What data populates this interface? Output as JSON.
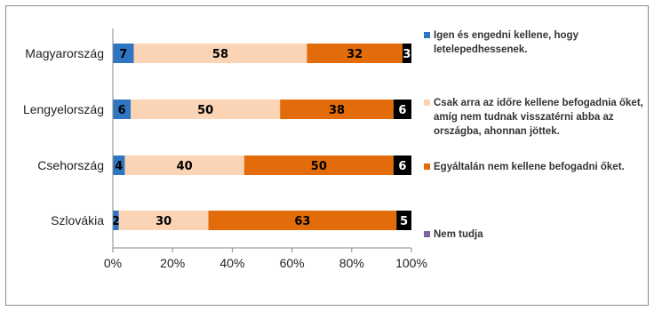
{
  "chart_data": {
    "type": "bar",
    "orientation": "horizontal",
    "stacked": true,
    "percent": true,
    "categories": [
      "Magyarország",
      "Lengyelország",
      "Csehország",
      "Szlovákia"
    ],
    "series": [
      {
        "name": "Igen és engedni kellene, hogy letelepedhessenek.",
        "color": "#2e75c2",
        "values": [
          7,
          6,
          4,
          2
        ]
      },
      {
        "name": "Csak arra az időre kellene befogadnia őket, amíg nem tudnak visszatérni abba az országba, ahonnan jöttek.",
        "color": "#fbd3b5",
        "values": [
          58,
          50,
          40,
          30
        ]
      },
      {
        "name": "Egyáltalán nem kellene befogadni őket.",
        "color": "#e36c0a",
        "values": [
          32,
          38,
          50,
          63
        ]
      },
      {
        "name": "Nem tudja",
        "color": "#000000",
        "values": [
          3,
          6,
          6,
          5
        ]
      }
    ],
    "legend_swatches": [
      "#2e75c2",
      "#fbd3b5",
      "#e36c0a",
      "#8064a2"
    ],
    "xlim": [
      0,
      100
    ],
    "x_ticks": [
      "0%",
      "20%",
      "40%",
      "60%",
      "80%",
      "100%"
    ],
    "label_colors": [
      "#000000",
      "#000000",
      "#000000",
      "#ffffff"
    ],
    "legend_position": "right",
    "grid": false
  },
  "legend": {
    "items": [
      {
        "lines": [
          "Igen és engedni kellene, hogy",
          "letelepedhessenek."
        ]
      },
      {
        "lines": [
          "Csak arra az időre kellene befogadnia őket,",
          "amíg nem tudnak visszatérni abba az",
          "országba, ahonnan jöttek."
        ]
      },
      {
        "lines": [
          "Egyáltalán nem kellene befogadni őket."
        ]
      },
      {
        "lines": [
          "Nem tudja"
        ]
      }
    ]
  }
}
